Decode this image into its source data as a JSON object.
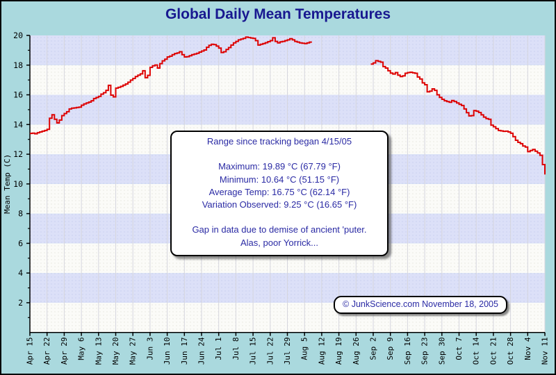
{
  "window": {
    "bg_color": "#aad9de",
    "border_color": "#000000"
  },
  "title": {
    "text": "Global Daily Mean Temperatures",
    "color": "#181890"
  },
  "info_box": {
    "heading": "Range since tracking began 4/15/05",
    "stats": [
      "Maximum: 19.89 °C (67.79 °F)",
      "Minimum: 10.64 °C (51.15 °F)",
      "Average Temp: 16.75 °C (62.14 °F)",
      "Variation Observed: 9.25 °C (16.65 °F)"
    ],
    "note_lines": [
      "Gap in data due to demise of ancient 'puter.",
      "Alas, poor Yorrick..."
    ]
  },
  "copyright": {
    "text": "© JunkScience.com November 18, 2005"
  },
  "chart_data": {
    "type": "line",
    "style": "step-after",
    "title": "Global Daily Mean Temperatures",
    "xlabel": "",
    "ylabel": "Mean Temp (C)",
    "ylim": [
      0,
      20
    ],
    "y_major_ticks": [
      2,
      4,
      6,
      8,
      10,
      12,
      14,
      16,
      18,
      20
    ],
    "y_minor_ticks": [
      1,
      3,
      5,
      7,
      9,
      11,
      13,
      15,
      17,
      19
    ],
    "grid": "vertical-weekly",
    "legend_position": "none",
    "start_date": "4/15/05",
    "days_per_tick": 7,
    "x_tick_labels": [
      "Apr 15",
      "Apr 22",
      "Apr 29",
      "May 6",
      "May 13",
      "May 20",
      "May 27",
      "Jun 3",
      "Jun 10",
      "Jun 17",
      "Jun 24",
      "Jul 1",
      "Jul 8",
      "Jul 15",
      "Jul 22",
      "Jul 29",
      "Aug 5",
      "Aug 12",
      "Aug 19",
      "Aug 26",
      "Sep 2",
      "Sep 9",
      "Sep 16",
      "Sep 23",
      "Sep 30",
      "Oct 7",
      "Oct 14",
      "Oct 21",
      "Oct 28",
      "Nov 4",
      "Nov 11"
    ],
    "line_color": "#dd0000",
    "band_color_lavender": "#dce0f8",
    "band_color_white": "#fbfbf8",
    "band_dot_lavender": "#c7cdee",
    "band_dot_white": "#e5e5de",
    "gridline_color": "#d6d6de",
    "axis_color": "#000000",
    "gap": {
      "start_day": 115,
      "end_day": 138,
      "reason": "Gap in data due to demise of ancient 'puter."
    },
    "series": [
      {
        "name": "daily-mean-temp-before-gap",
        "start_day": 0,
        "values": [
          13.4,
          13.42,
          13.38,
          13.45,
          13.5,
          13.55,
          13.6,
          13.68,
          14.42,
          14.66,
          14.35,
          14.11,
          14.3,
          14.6,
          14.74,
          14.86,
          15.05,
          15.1,
          15.12,
          15.15,
          15.17,
          15.3,
          15.39,
          15.45,
          15.51,
          15.6,
          15.75,
          15.82,
          15.9,
          16.05,
          16.14,
          16.3,
          16.64,
          15.98,
          15.86,
          16.45,
          16.5,
          16.57,
          16.65,
          16.73,
          16.85,
          16.99,
          17.1,
          17.23,
          17.32,
          17.41,
          17.62,
          17.15,
          17.31,
          17.85,
          17.95,
          18.01,
          17.8,
          18.1,
          18.29,
          18.4,
          18.55,
          18.6,
          18.7,
          18.78,
          18.82,
          18.9,
          18.7,
          18.55,
          18.57,
          18.63,
          18.7,
          18.75,
          18.8,
          18.88,
          18.95,
          19.02,
          19.2,
          19.33,
          19.4,
          19.38,
          19.28,
          19.15,
          18.85,
          18.9,
          19.05,
          19.18,
          19.35,
          19.5,
          19.6,
          19.7,
          19.75,
          19.8,
          19.89,
          19.86,
          19.82,
          19.8,
          19.65,
          19.35,
          19.4,
          19.45,
          19.51,
          19.58,
          19.65,
          19.84,
          19.6,
          19.5,
          19.57,
          19.6,
          19.65,
          19.7,
          19.78,
          19.7,
          19.6,
          19.55,
          19.5,
          19.47,
          19.45,
          19.5,
          19.55
        ]
      },
      {
        "name": "daily-mean-temp-after-gap",
        "start_day": 139,
        "values": [
          18.07,
          18.15,
          18.3,
          18.25,
          18.2,
          17.9,
          17.8,
          17.62,
          17.46,
          17.4,
          17.5,
          17.32,
          17.23,
          17.28,
          17.45,
          17.5,
          17.52,
          17.48,
          17.45,
          17.2,
          17.07,
          16.8,
          16.68,
          16.2,
          16.25,
          16.4,
          16.3,
          16.0,
          15.83,
          15.7,
          15.6,
          15.55,
          15.5,
          15.62,
          15.55,
          15.45,
          15.36,
          15.28,
          15.05,
          14.8,
          14.58,
          14.6,
          14.94,
          14.9,
          14.81,
          14.65,
          14.5,
          14.4,
          14.35,
          13.96,
          13.85,
          13.72,
          13.6,
          13.57,
          13.54,
          13.55,
          13.5,
          13.41,
          13.18,
          12.94,
          12.8,
          12.71,
          12.55,
          12.48,
          12.17,
          12.25,
          12.32,
          12.2,
          12.09,
          11.93,
          11.3,
          10.64
        ]
      }
    ]
  }
}
